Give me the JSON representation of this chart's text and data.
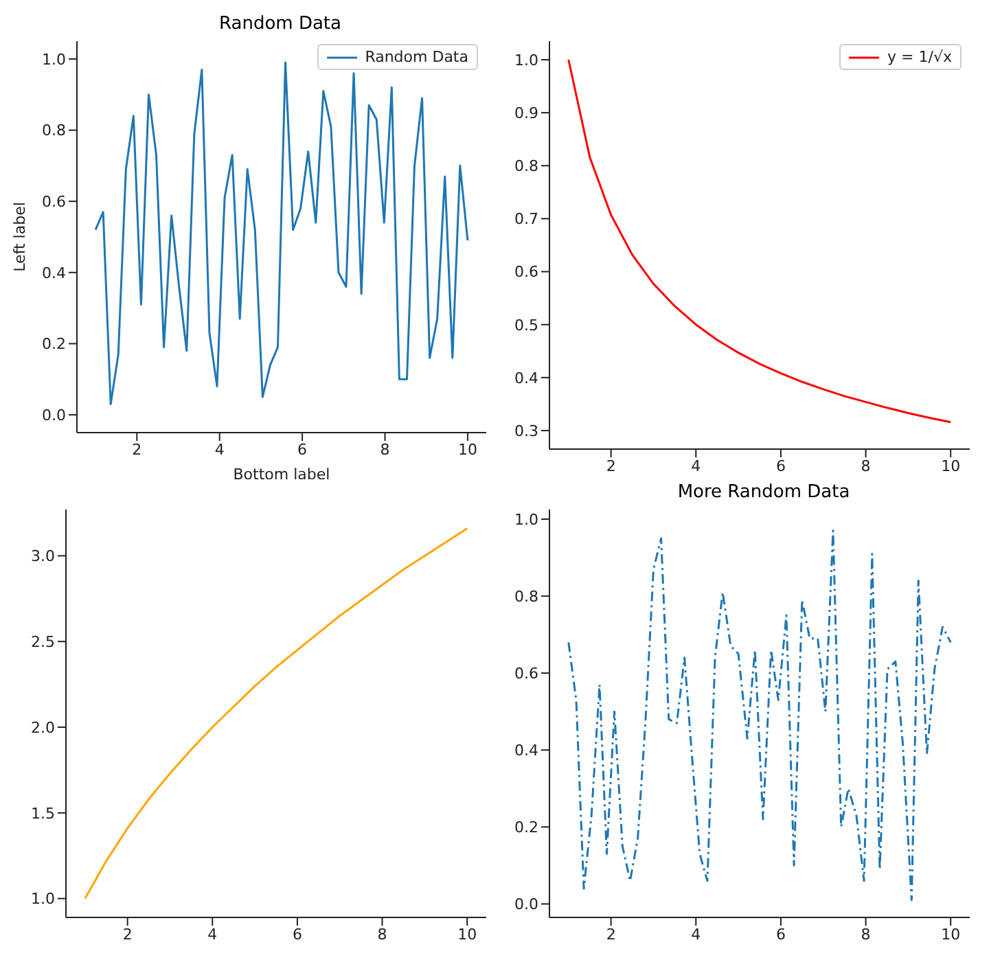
{
  "chart_data": [
    {
      "type": "line",
      "title": "Random Data",
      "xlabel": "Bottom label",
      "ylabel": "Left label",
      "legend": "top right",
      "x": [
        1.0,
        1.184,
        1.367,
        1.551,
        1.735,
        1.918,
        2.102,
        2.286,
        2.469,
        2.653,
        2.837,
        3.02,
        3.204,
        3.388,
        3.571,
        3.755,
        3.939,
        4.122,
        4.306,
        4.49,
        4.673,
        4.857,
        5.041,
        5.224,
        5.408,
        5.592,
        5.776,
        5.959,
        6.143,
        6.327,
        6.51,
        6.694,
        6.878,
        7.061,
        7.245,
        7.429,
        7.612,
        7.796,
        7.98,
        8.163,
        8.347,
        8.531,
        8.714,
        8.898,
        9.082,
        9.265,
        9.449,
        9.633,
        9.816,
        10.0
      ],
      "series": [
        {
          "name": "Random Data",
          "color": "#1f77b4",
          "values": [
            0.52,
            0.57,
            0.03,
            0.17,
            0.69,
            0.84,
            0.31,
            0.9,
            0.73,
            0.19,
            0.56,
            0.36,
            0.18,
            0.79,
            0.97,
            0.23,
            0.08,
            0.61,
            0.73,
            0.27,
            0.69,
            0.52,
            0.05,
            0.14,
            0.19,
            0.99,
            0.52,
            0.58,
            0.74,
            0.54,
            0.91,
            0.81,
            0.4,
            0.36,
            0.96,
            0.34,
            0.87,
            0.83,
            0.54,
            0.92,
            0.1,
            0.1,
            0.7,
            0.89,
            0.16,
            0.27,
            0.67,
            0.16,
            0.7,
            0.49
          ]
        }
      ],
      "xlim": [
        0.55,
        10.45
      ],
      "xticks": [
        2,
        4,
        6,
        8,
        10
      ],
      "ylim": [
        -0.05,
        1.05
      ],
      "yticks": [
        {
          "value": 0,
          "label": "0.0"
        },
        0.2,
        0.4,
        0.6,
        0.8,
        {
          "value": 1,
          "label": "1.0"
        }
      ]
    },
    {
      "type": "line",
      "legend": "top right",
      "x": [
        1,
        1.5,
        2,
        2.5,
        3,
        3.5,
        4,
        4.5,
        5,
        5.5,
        6,
        6.5,
        7,
        7.5,
        8,
        8.5,
        9,
        9.5,
        10
      ],
      "series": [
        {
          "name": "y = 1/√x",
          "color": "#ff0000",
          "values": [
            1.0,
            0.816,
            0.707,
            0.632,
            0.577,
            0.535,
            0.5,
            0.471,
            0.447,
            0.426,
            0.408,
            0.392,
            0.378,
            0.365,
            0.354,
            0.343,
            0.333,
            0.324,
            0.316
          ]
        }
      ],
      "xlim": [
        0.55,
        10.45
      ],
      "xticks": [
        2,
        4,
        6,
        8,
        10
      ],
      "ylim": [
        0.265,
        1.035
      ],
      "yticks": [
        0.3,
        0.4,
        0.5,
        0.6,
        0.7,
        0.8,
        0.9,
        {
          "value": 1,
          "label": "1.0"
        }
      ]
    },
    {
      "type": "line",
      "x": [
        1,
        1.5,
        2,
        2.5,
        3,
        3.5,
        4,
        4.5,
        5,
        5.5,
        6,
        6.5,
        7,
        7.5,
        8,
        8.5,
        9,
        9.5,
        10
      ],
      "series": [
        {
          "color": "#ffa500",
          "values": [
            1.0,
            1.22,
            1.41,
            1.58,
            1.73,
            1.87,
            2.0,
            2.12,
            2.24,
            2.35,
            2.45,
            2.55,
            2.65,
            2.74,
            2.83,
            2.92,
            3.0,
            3.08,
            3.16
          ]
        }
      ],
      "xlim": [
        0.55,
        10.45
      ],
      "xticks": [
        2,
        4,
        6,
        8,
        10
      ],
      "ylim": [
        0.89,
        3.27
      ],
      "yticks": [
        {
          "value": 1,
          "label": "1.0"
        },
        1.5,
        {
          "value": 2,
          "label": "2.0"
        },
        2.5,
        {
          "value": 3,
          "label": "3.0"
        }
      ]
    },
    {
      "type": "line",
      "title": "More Random Data",
      "line_style": "dashed",
      "x": [
        1.0,
        1.18,
        1.36,
        1.54,
        1.73,
        1.9,
        2.08,
        2.27,
        2.45,
        2.63,
        2.81,
        3.0,
        3.18,
        3.36,
        3.55,
        3.73,
        3.91,
        4.09,
        4.27,
        4.45,
        4.63,
        4.82,
        5.0,
        5.21,
        5.39,
        5.58,
        5.77,
        5.94,
        6.13,
        6.31,
        6.5,
        6.68,
        6.87,
        7.05,
        7.23,
        7.42,
        7.59,
        7.78,
        7.96,
        8.15,
        8.33,
        8.51,
        8.7,
        8.87,
        9.08,
        9.24,
        9.44,
        9.62,
        9.81,
        10.0
      ],
      "series": [
        {
          "color": "#1f77b4",
          "values": [
            0.68,
            0.53,
            0.04,
            0.23,
            0.57,
            0.13,
            0.5,
            0.15,
            0.06,
            0.17,
            0.47,
            0.87,
            0.95,
            0.48,
            0.47,
            0.64,
            0.38,
            0.13,
            0.06,
            0.64,
            0.81,
            0.67,
            0.65,
            0.43,
            0.66,
            0.22,
            0.66,
            0.53,
            0.75,
            0.1,
            0.79,
            0.69,
            0.69,
            0.5,
            0.97,
            0.2,
            0.3,
            0.23,
            0.06,
            0.91,
            0.09,
            0.61,
            0.63,
            0.42,
            0.01,
            0.84,
            0.39,
            0.61,
            0.72,
            0.68
          ]
        }
      ],
      "xlim": [
        0.55,
        10.45
      ],
      "xticks": [
        2,
        4,
        6,
        8,
        10
      ],
      "ylim": [
        -0.035,
        1.025
      ],
      "yticks": [
        {
          "value": 0,
          "label": "0.0"
        },
        0.2,
        0.4,
        0.6,
        0.8,
        {
          "value": 1,
          "label": "1.0"
        }
      ]
    }
  ]
}
